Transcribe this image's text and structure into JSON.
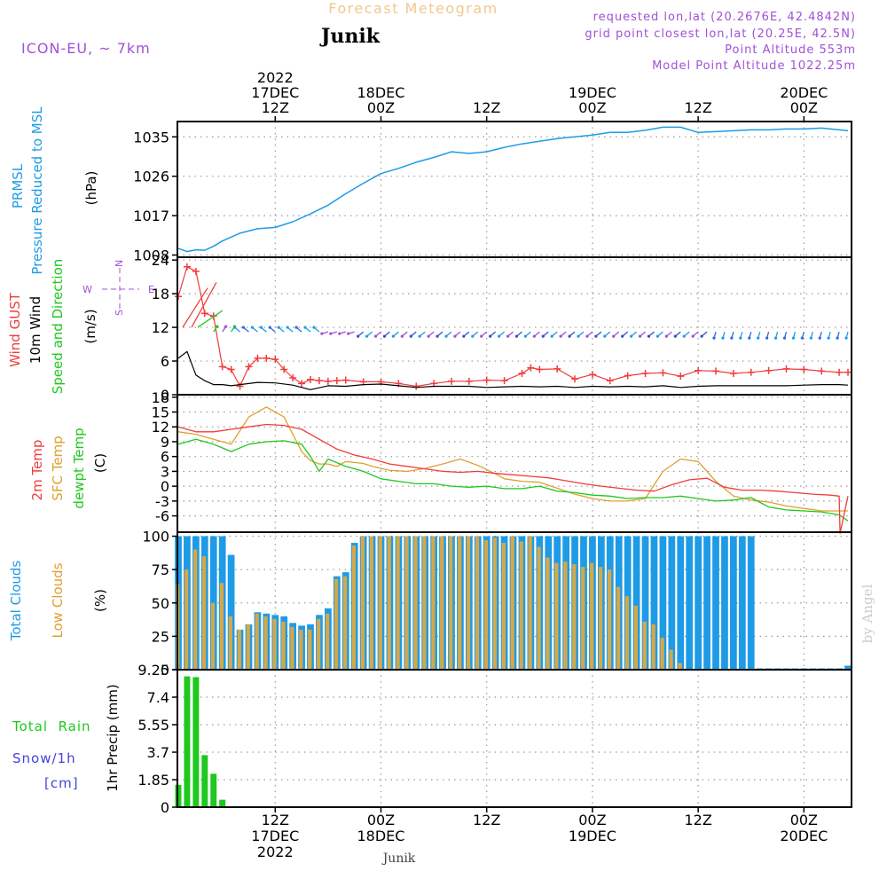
{
  "header": {
    "title": "Forecast Meteogram",
    "location": "Junik",
    "model": "ICON-EU, ~ 7km",
    "requested": "requested lon,lat (20.2676E, 42.4842N)",
    "gridpoint": "grid point closest lon,lat (20.25E, 42.5N)",
    "point_alt": "Point Altitude 553m",
    "model_alt": "Model Point Altitude 1022.25m",
    "footer_location": "Junik",
    "credit": "by Angel"
  },
  "colors": {
    "pressure": "#1e9be6",
    "gust": "#f03c3c",
    "wind": "#000000",
    "dir_green": "#1ec81e",
    "purple": "#a050d8",
    "orange": "#f0b050",
    "temp": "#f03c3c",
    "sfc": "#e0a030",
    "dewpt": "#1ec81e",
    "total_clouds": "#1e9be6",
    "low_clouds": "#d4a84a",
    "rain": "#1ec81e",
    "snow": "#4444dd",
    "grid": "#999999"
  },
  "time_axis": {
    "top_labels": [
      {
        "t": 12,
        "lines": [
          "2022",
          "17DEC",
          "12Z"
        ]
      },
      {
        "t": 24,
        "lines": [
          "18DEC",
          "00Z"
        ]
      },
      {
        "t": 36,
        "lines": [
          "12Z"
        ]
      },
      {
        "t": 48,
        "lines": [
          "19DEC",
          "00Z"
        ]
      },
      {
        "t": 60,
        "lines": [
          "12Z"
        ]
      },
      {
        "t": 72,
        "lines": [
          "20DEC",
          "00Z"
        ]
      }
    ],
    "bottom_labels": [
      {
        "t": 12,
        "lines": [
          "12Z",
          "17DEC",
          "2022"
        ]
      },
      {
        "t": 24,
        "lines": [
          "00Z",
          "18DEC"
        ]
      },
      {
        "t": 36,
        "lines": [
          "12Z"
        ]
      },
      {
        "t": 48,
        "lines": [
          "00Z",
          "19DEC"
        ]
      },
      {
        "t": 60,
        "lines": [
          "12Z"
        ]
      },
      {
        "t": 72,
        "lines": [
          "00Z",
          "20DEC"
        ]
      }
    ],
    "t_start": 0.9,
    "t_end": 77.4
  },
  "panel_labels": {
    "pressure": {
      "l1": "PRMSL",
      "l2": "Pressure Reduced to MSL",
      "unit": "(hPa)"
    },
    "wind": {
      "l1": "Wind GUST",
      "l2": "10m Wind",
      "l3": "Speed and Direction",
      "unit": "(m/s)",
      "compass_n": "N",
      "compass_s": "S",
      "compass_w": "W",
      "compass_e": "E"
    },
    "temp": {
      "l1": "2m Temp",
      "l2": "SFC Temp",
      "l3": "dewpt Temp",
      "unit": "(C)"
    },
    "clouds": {
      "l1": "Total Clouds",
      "l2": "Low Clouds",
      "unit": "(%)"
    },
    "precip": {
      "l1": "Total  Rain",
      "l2": "Snow/1h",
      "l3": "[cm]",
      "unit": "1hr Precip (mm)"
    }
  },
  "chart_data": [
    {
      "type": "line",
      "title": "PRMSL Pressure Reduced to MSL",
      "ylabel": "(hPa)",
      "ylim": [
        1007.5,
        1038.5
      ],
      "yticks": [
        "1008",
        "1017",
        "1026",
        "1035"
      ],
      "series": [
        {
          "name": "PRMSL",
          "x": [
            1,
            2,
            3,
            4,
            5,
            6,
            8,
            10,
            12,
            14,
            16,
            18,
            20,
            22,
            24,
            26,
            28,
            30,
            32,
            34,
            36,
            38,
            40,
            42,
            44,
            46,
            48,
            50,
            52,
            54,
            56,
            58,
            60,
            62,
            64,
            66,
            68,
            70,
            72,
            74,
            76,
            77
          ],
          "values": [
            1009.5,
            1008.8,
            1009.2,
            1009.1,
            1010.0,
            1011.2,
            1013.0,
            1014.0,
            1014.3,
            1015.6,
            1017.4,
            1019.4,
            1022.0,
            1024.4,
            1026.6,
            1027.8,
            1029.2,
            1030.3,
            1031.6,
            1031.2,
            1031.6,
            1032.6,
            1033.4,
            1034.0,
            1034.6,
            1035.0,
            1035.4,
            1036.0,
            1036.0,
            1036.5,
            1037.2,
            1037.2,
            1036.0,
            1036.2,
            1036.4,
            1036.6,
            1036.6,
            1036.8,
            1036.8,
            1037.0,
            1036.6,
            1036.4
          ]
        }
      ]
    },
    {
      "type": "line",
      "title": "Wind GUST / 10m Wind Speed and Direction",
      "ylabel": "(m/s)",
      "ylim": [
        0,
        24.5
      ],
      "yticks": [
        "0",
        "6",
        "12",
        "18",
        "24"
      ],
      "series": [
        {
          "name": "Wind GUST",
          "x": [
            1,
            2,
            3,
            4,
            5,
            6,
            7,
            8,
            9,
            10,
            11,
            12,
            13,
            14,
            15,
            16,
            17,
            18,
            19,
            20,
            22,
            24,
            26,
            28,
            30,
            32,
            34,
            36,
            38,
            40,
            41,
            42,
            44,
            46,
            48,
            50,
            52,
            54,
            56,
            58,
            60,
            62,
            64,
            66,
            68,
            70,
            72,
            74,
            76,
            77
          ],
          "values": [
            17.5,
            22.8,
            22.0,
            14.5,
            14.0,
            5.0,
            4.5,
            1.5,
            5.0,
            6.5,
            6.5,
            6.3,
            4.5,
            3.0,
            2.0,
            2.7,
            2.5,
            2.4,
            2.5,
            2.6,
            2.3,
            2.3,
            2.0,
            1.5,
            2.0,
            2.4,
            2.4,
            2.6,
            2.5,
            3.8,
            4.8,
            4.5,
            4.6,
            2.8,
            3.6,
            2.5,
            3.4,
            3.8,
            3.9,
            3.3,
            4.3,
            4.2,
            3.8,
            4.0,
            4.3,
            4.6,
            4.5,
            4.2,
            4.0,
            4.0
          ]
        },
        {
          "name": "10m Wind",
          "x": [
            1,
            2,
            3,
            4,
            5,
            6,
            7,
            8,
            10,
            12,
            14,
            16,
            18,
            20,
            22,
            24,
            26,
            28,
            30,
            32,
            34,
            36,
            38,
            40,
            42,
            44,
            46,
            48,
            50,
            52,
            54,
            56,
            58,
            60,
            62,
            64,
            66,
            68,
            70,
            72,
            74,
            76,
            77
          ],
          "values": [
            6.5,
            7.7,
            3.5,
            2.5,
            1.8,
            1.8,
            1.6,
            1.8,
            2.2,
            2.1,
            1.7,
            0.9,
            1.6,
            1.5,
            1.8,
            1.9,
            1.6,
            1.3,
            1.5,
            1.5,
            1.5,
            1.3,
            1.4,
            1.5,
            1.4,
            1.5,
            1.3,
            1.5,
            1.4,
            1.5,
            1.4,
            1.6,
            1.3,
            1.5,
            1.6,
            1.6,
            1.6,
            1.6,
            1.6,
            1.7,
            1.8,
            1.8,
            1.7
          ]
        }
      ]
    },
    {
      "type": "line",
      "title": "2m Temp / SFC Temp / dewpt Temp",
      "ylabel": "(C)",
      "ylim": [
        -9.3,
        18.5
      ],
      "yticks": [
        "-6",
        "-3",
        "0",
        "3",
        "6",
        "9",
        "12",
        "15",
        "18"
      ],
      "series": [
        {
          "name": "2m Temp",
          "x": [
            1,
            3,
            5,
            7,
            9,
            11,
            13,
            15,
            17,
            19,
            21,
            23,
            25,
            27,
            29,
            31,
            33,
            35,
            37,
            39,
            41,
            43,
            45,
            47,
            49,
            51,
            53,
            55,
            57,
            59,
            61,
            63,
            65,
            67,
            69,
            71,
            73,
            75,
            76,
            76.1,
            77
          ],
          "values": [
            12.0,
            11.0,
            11.0,
            11.5,
            12.0,
            12.5,
            12.3,
            11.5,
            9.5,
            7.5,
            6.3,
            5.5,
            4.5,
            4.0,
            3.5,
            3.0,
            2.8,
            3.0,
            2.6,
            2.3,
            2.0,
            1.7,
            1.1,
            0.5,
            0,
            -0.4,
            -0.8,
            -1.0,
            0.3,
            1.3,
            1.6,
            -0.2,
            -0.8,
            -0.8,
            -1.0,
            -1.3,
            -1.6,
            -1.8,
            -2.0,
            -9.5,
            -2.0
          ]
        },
        {
          "name": "SFC Temp",
          "x": [
            1,
            3,
            5,
            7,
            9,
            11,
            12,
            13,
            14,
            15,
            16,
            17,
            18,
            19,
            20,
            21,
            22,
            23,
            25,
            27,
            29,
            31,
            33,
            35,
            37,
            38,
            40,
            42,
            44,
            46,
            48,
            50,
            52,
            54,
            56,
            58,
            60,
            62,
            64,
            66,
            68,
            70,
            72,
            74,
            76,
            77
          ],
          "values": [
            11.0,
            10.5,
            9.5,
            8.5,
            14.0,
            16.0,
            15.0,
            14.0,
            10.5,
            7.0,
            5.2,
            4.5,
            4.5,
            4.0,
            5.0,
            4.8,
            4.6,
            4.0,
            3.2,
            3.0,
            3.6,
            4.5,
            5.5,
            4.2,
            2.5,
            1.5,
            1.0,
            0.8,
            -0.4,
            -1.6,
            -2.5,
            -3.0,
            -3.0,
            -2.5,
            3.0,
            5.5,
            5.0,
            1.0,
            -2.0,
            -2.8,
            -3.2,
            -4.0,
            -4.5,
            -5.0,
            -5.0,
            -5.0
          ]
        },
        {
          "name": "dewpt Temp",
          "x": [
            1,
            3,
            5,
            7,
            9,
            11,
            13,
            15,
            16,
            17,
            18,
            20,
            22,
            24,
            26,
            28,
            30,
            32,
            34,
            36,
            38,
            40,
            42,
            44,
            46,
            48,
            50,
            52,
            54,
            56,
            58,
            60,
            62,
            64,
            66,
            68,
            70,
            72,
            74,
            76,
            77
          ],
          "values": [
            8.5,
            9.5,
            8.5,
            7.0,
            8.5,
            9.0,
            9.2,
            8.5,
            6.0,
            3.0,
            5.5,
            4.0,
            3.0,
            1.5,
            1.0,
            0.5,
            0.5,
            0,
            -0.2,
            0,
            -0.5,
            -0.5,
            0,
            -1.0,
            -1.3,
            -1.8,
            -2.0,
            -2.5,
            -2.3,
            -2.3,
            -2.0,
            -2.5,
            -3.0,
            -2.8,
            -2.3,
            -4.2,
            -4.8,
            -5.0,
            -5.2,
            -5.8,
            -7.0
          ]
        }
      ]
    },
    {
      "type": "bar",
      "title": "Total Clouds / Low Clouds",
      "ylabel": "(%)",
      "ylim": [
        0,
        103
      ],
      "yticks": [
        "0",
        "25",
        "50",
        "75",
        "100"
      ],
      "x": [
        1,
        2,
        3,
        4,
        5,
        6,
        7,
        8,
        9,
        10,
        11,
        12,
        13,
        14,
        15,
        16,
        17,
        18,
        19,
        20,
        21,
        22,
        23,
        24,
        25,
        26,
        27,
        28,
        29,
        30,
        31,
        32,
        33,
        34,
        35,
        36,
        37,
        38,
        39,
        40,
        41,
        42,
        43,
        44,
        45,
        46,
        47,
        48,
        49,
        50,
        51,
        52,
        53,
        54,
        55,
        56,
        57,
        58,
        59,
        60,
        61,
        62,
        63,
        64,
        65,
        66,
        67,
        68,
        69,
        70,
        71,
        72,
        73,
        74,
        75,
        76,
        77
      ],
      "series": [
        {
          "name": "Total Clouds",
          "values": [
            100,
            100,
            100,
            100,
            100,
            100,
            86,
            30,
            34,
            43,
            42,
            41,
            40,
            35,
            33,
            34,
            41,
            46,
            70,
            73,
            95,
            100,
            100,
            100,
            100,
            100,
            100,
            100,
            100,
            100,
            100,
            100,
            100,
            100,
            100,
            100,
            100,
            100,
            100,
            100,
            100,
            100,
            100,
            100,
            100,
            100,
            100,
            100,
            100,
            100,
            100,
            100,
            100,
            100,
            100,
            100,
            100,
            100,
            100,
            100,
            100,
            100,
            100,
            100,
            100,
            100,
            1,
            1,
            1,
            1,
            1,
            1,
            1,
            1,
            1,
            1,
            3
          ]
        },
        {
          "name": "Low Clouds",
          "values": [
            64,
            75,
            90,
            85,
            50,
            65,
            40,
            30,
            34,
            42,
            40,
            38,
            36,
            32,
            30,
            30,
            38,
            42,
            68,
            70,
            93,
            100,
            100,
            100,
            100,
            100,
            100,
            100,
            100,
            100,
            100,
            100,
            100,
            100,
            100,
            97,
            99,
            95,
            100,
            96,
            100,
            92,
            84,
            80,
            81,
            79,
            77,
            80,
            77,
            75,
            62,
            55,
            48,
            36,
            34,
            24,
            15,
            5,
            0,
            0,
            0,
            0,
            0,
            0,
            0,
            0,
            0,
            0,
            0,
            0,
            0,
            0,
            0,
            0,
            0,
            0,
            0
          ]
        }
      ]
    },
    {
      "type": "bar",
      "title": "1hr Precip (mm)",
      "ylabel": "1hr Precip (mm)",
      "ylim": [
        0,
        9.25
      ],
      "yticks": [
        "0",
        "1.85",
        "3.7",
        "5.55",
        "7.4",
        "9.25"
      ],
      "x": [
        1,
        2,
        3,
        4,
        5,
        6
      ],
      "series": [
        {
          "name": "Total Rain",
          "values": [
            1.5,
            8.8,
            8.75,
            3.5,
            2.25,
            0.5
          ]
        }
      ]
    }
  ]
}
